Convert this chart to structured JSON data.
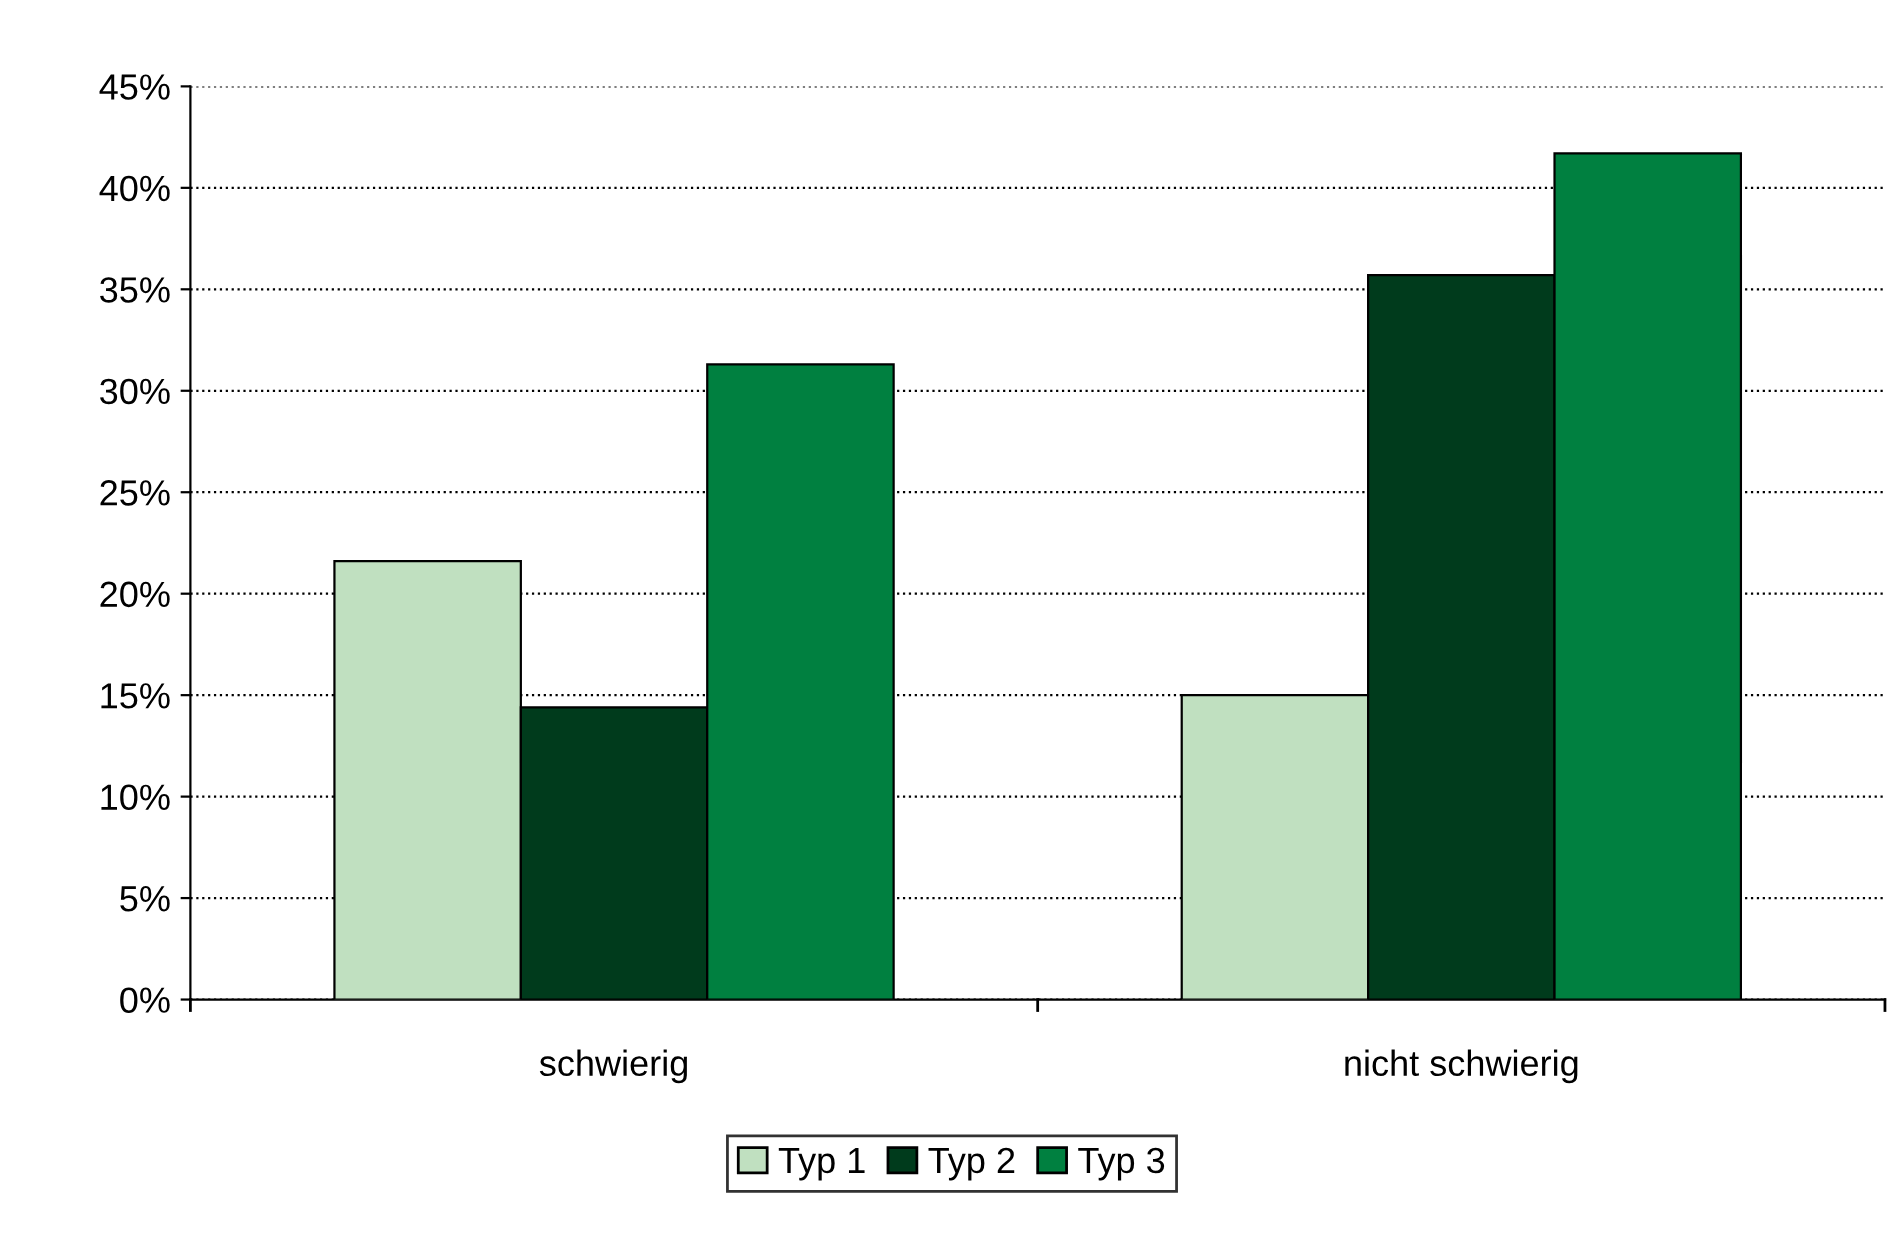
{
  "chart_data": {
    "type": "bar",
    "categories": [
      "schwierig",
      "nicht schwierig"
    ],
    "series": [
      {
        "name": "Typ 1",
        "color": "#c0e0c0",
        "values": [
          21.6,
          15.0
        ]
      },
      {
        "name": "Typ 2",
        "color": "#003b1c",
        "values": [
          14.4,
          35.7
        ]
      },
      {
        "name": "Typ 3",
        "color": "#008040",
        "values": [
          31.3,
          41.7
        ]
      }
    ],
    "ylim": [
      0,
      45
    ],
    "yticks": [
      {
        "value": 0,
        "label": "0%"
      },
      {
        "value": 5,
        "label": "5%"
      },
      {
        "value": 10,
        "label": "10%"
      },
      {
        "value": 15,
        "label": "15%"
      },
      {
        "value": 20,
        "label": "20%"
      },
      {
        "value": 25,
        "label": "25%"
      },
      {
        "value": 30,
        "label": "30%"
      },
      {
        "value": 35,
        "label": "35%"
      },
      {
        "value": 40,
        "label": "40%"
      },
      {
        "value": 45,
        "label": "45%"
      }
    ],
    "grid": "y",
    "legend": "bottom",
    "line_style": "dotted"
  }
}
